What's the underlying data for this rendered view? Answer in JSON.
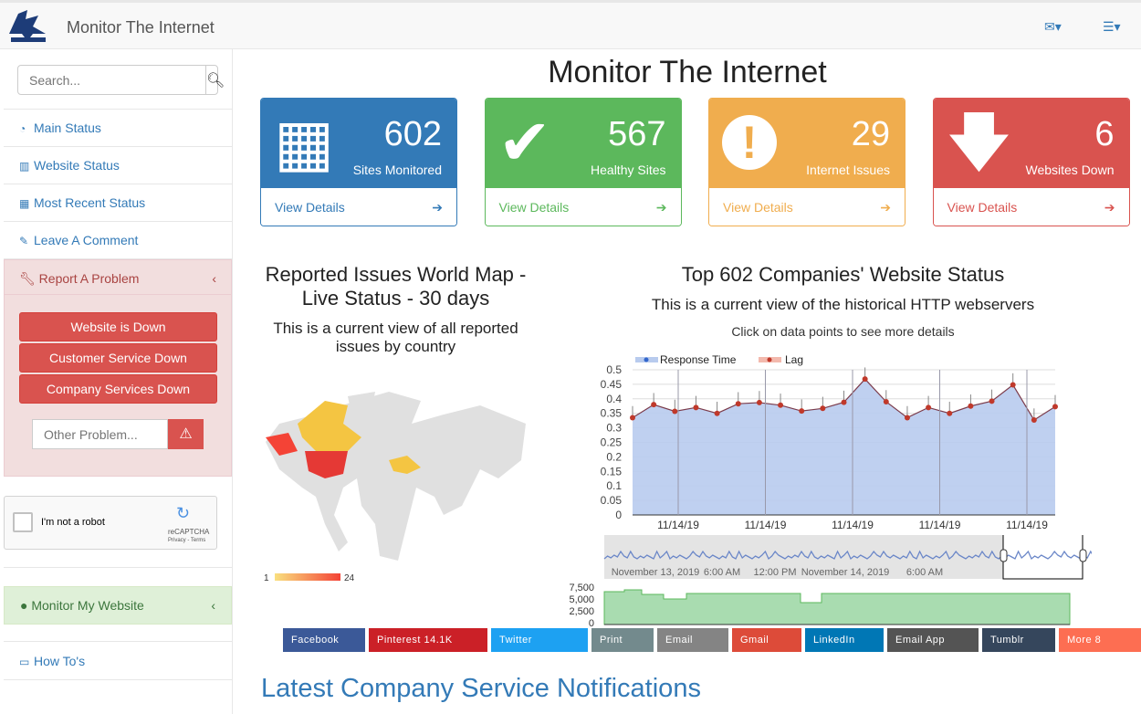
{
  "header": {
    "brand": "Monitor The Internet",
    "mail_icon": "envelope-icon",
    "menu_icon": "tasks-icon"
  },
  "sidebar": {
    "search_placeholder": "Search...",
    "items": [
      {
        "label": "Main Status",
        "icon": "dashboard-icon"
      },
      {
        "label": "Website Status",
        "icon": "bar-chart-icon"
      },
      {
        "label": "Most Recent Status",
        "icon": "table-icon"
      },
      {
        "label": "Leave A Comment",
        "icon": "edit-icon"
      }
    ],
    "report": {
      "label": "Report A Problem",
      "buttons": [
        "Website is Down",
        "Customer Service Down",
        "Company Services Down"
      ],
      "other_placeholder": "Other Problem..."
    },
    "captcha": {
      "label": "I'm not a robot",
      "brand": "reCAPTCHA",
      "links": "Privacy - Terms"
    },
    "monitor": "Monitor My Website",
    "howto": "How To's"
  },
  "main": {
    "title": "Monitor The Internet",
    "panels": [
      {
        "num": "602",
        "label": "Sites Monitored",
        "link": "View Details",
        "color": "#337ab7"
      },
      {
        "num": "567",
        "label": "Healthy Sites",
        "link": "View Details",
        "color": "#5cb85c"
      },
      {
        "num": "29",
        "label": "Internet Issues",
        "link": "View Details",
        "color": "#f0ad4e"
      },
      {
        "num": "6",
        "label": "Websites Down",
        "link": "View Details",
        "color": "#d9534f"
      }
    ],
    "map": {
      "title": "Reported Issues World Map - Live Status - 30 days",
      "subtitle": "This is a current view of all reported issues by country",
      "legend_min": "1",
      "legend_max": "24"
    },
    "chart_title": "Top 602 Companies' Website Status",
    "chart_subtitle": "This is a current view of the historical HTTP webservers",
    "chart_hint": "Click on data points to see more details",
    "notifications_title": "Latest Company Service Notifications"
  },
  "share": [
    {
      "label": "Facebook",
      "color": "#3b5998"
    },
    {
      "label": "Pinterest  14.1K",
      "color": "#cb2027"
    },
    {
      "label": "Twitter",
      "color": "#1da1f2"
    },
    {
      "label": "Print",
      "color": "#738a8d"
    },
    {
      "label": "Email",
      "color": "#848484"
    },
    {
      "label": "Gmail",
      "color": "#dd4b39"
    },
    {
      "label": "LinkedIn",
      "color": "#0077b5"
    },
    {
      "label": "Email App",
      "color": "#545454"
    },
    {
      "label": "Tumblr",
      "color": "#35465c"
    },
    {
      "label": "More  8",
      "color": "#fd6e52"
    }
  ],
  "chart_data": {
    "type": "area",
    "legend": [
      "Response Time",
      "Lag"
    ],
    "legend_position": "top-left",
    "ylim": [
      0,
      0.5
    ],
    "yticks": [
      "0",
      "0.05",
      "0.1",
      "0.15",
      "0.2",
      "0.25",
      "0.3",
      "0.35",
      "0.4",
      "0.45",
      "0.5"
    ],
    "xticks": [
      "11/14/19",
      "11/14/19",
      "11/14/19",
      "11/14/19",
      "11/14/19"
    ],
    "values": [
      0.335,
      0.38,
      0.357,
      0.37,
      0.35,
      0.383,
      0.387,
      0.378,
      0.358,
      0.367,
      0.388,
      0.468,
      0.39,
      0.335,
      0.37,
      0.35,
      0.375,
      0.392,
      0.448,
      0.327,
      0.373
    ],
    "navigator_labels": [
      "November 13, 2019",
      "6:00 AM",
      "12:00 PM",
      "November 14, 2019",
      "6:00 AM"
    ],
    "volume_yticks": [
      "7,500",
      "5,000",
      "2,500",
      "0"
    ],
    "colors": {
      "response": "#3366cc",
      "lag": "#c0392b",
      "area": "#b8cbee",
      "volume": "#5cb85c"
    }
  }
}
